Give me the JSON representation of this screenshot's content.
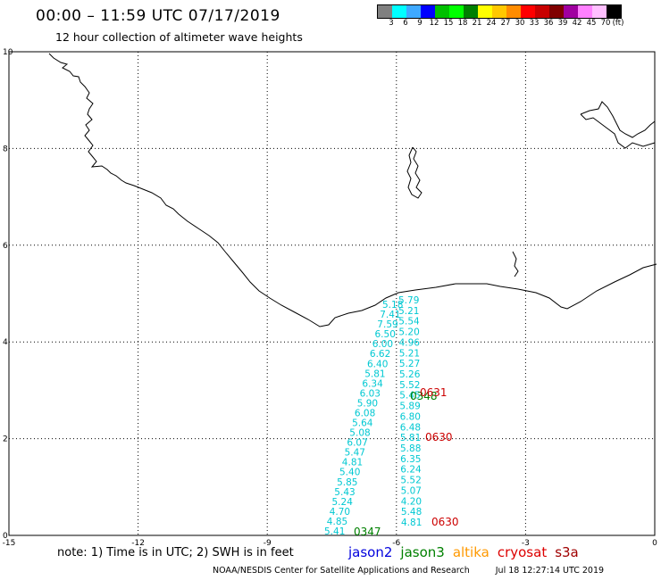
{
  "header": {
    "title": "00:00 – 11:59 UTC 07/17/2019",
    "subtitle": "12 hour collection of altimeter wave heights"
  },
  "colorbar": {
    "colors": [
      "#808080",
      "#00ffff",
      "#3fa9ff",
      "#0000ff",
      "#00c000",
      "#00ff00",
      "#008000",
      "#ffff00",
      "#ffc800",
      "#ff8c00",
      "#ff0000",
      "#c80000",
      "#800000",
      "#a000a0",
      "#ff80ff",
      "#ffbfff",
      "#000000"
    ],
    "labels": [
      "3",
      "6",
      "9",
      "12",
      "15",
      "18",
      "21",
      "24",
      "27",
      "30",
      "33",
      "36",
      "39",
      "42",
      "45",
      "70",
      "(ft)"
    ]
  },
  "axes": {
    "x_ticks": [
      "-15",
      "-12",
      "-9",
      "-6",
      "-3",
      "0"
    ],
    "y_ticks": [
      "0",
      "2",
      "4",
      "6",
      "8",
      "10"
    ]
  },
  "tracks": {
    "west": {
      "color": "#00c8d2",
      "values": [
        "5.18",
        "7.41",
        "7.59",
        "6.50",
        "6.00",
        "6.62",
        "6.40",
        "5.81",
        "6.34",
        "6.03",
        "5.90",
        "6.08",
        "5.64",
        "5.08",
        "6.07",
        "5.47",
        "4.81",
        "5.40",
        "5.85",
        "5.43",
        "5.24",
        "4.70",
        "4.85",
        "5.41"
      ]
    },
    "east": {
      "color": "#00c8d2",
      "values": [
        "5.79",
        "5.21",
        "5.54",
        "5.20",
        "4.96",
        "5.21",
        "5.27",
        "5.26",
        "5.52",
        "5.45",
        "5.89",
        "6.80",
        "6.48",
        "5.81",
        "5.88",
        "6.35",
        "6.24",
        "5.52",
        "5.07",
        "4.20",
        "5.48",
        "4.81"
      ]
    }
  },
  "pass_times": [
    {
      "text": "0348",
      "color": "#008000"
    },
    {
      "text": "0631",
      "color": "#cc0000"
    },
    {
      "text": "0630",
      "color": "#cc0000"
    },
    {
      "text": "0630",
      "color": "#cc0000"
    },
    {
      "text": "0347",
      "color": "#008000"
    }
  ],
  "note": "note: 1) Time is in UTC; 2) SWH is in feet",
  "legend": [
    {
      "label": "jason2",
      "color": "#0000dd"
    },
    {
      "label": "jason3",
      "color": "#008000"
    },
    {
      "label": "altika",
      "color": "#ff9900"
    },
    {
      "label": "cryosat",
      "color": "#dd0000"
    },
    {
      "label": "s3a",
      "color": "#a00000"
    }
  ],
  "footer": {
    "credit": "NOAA/NESDIS Center for Satellite Applications and Research",
    "timestamp": "Jul 18 12:27:14 UTC 2019"
  }
}
